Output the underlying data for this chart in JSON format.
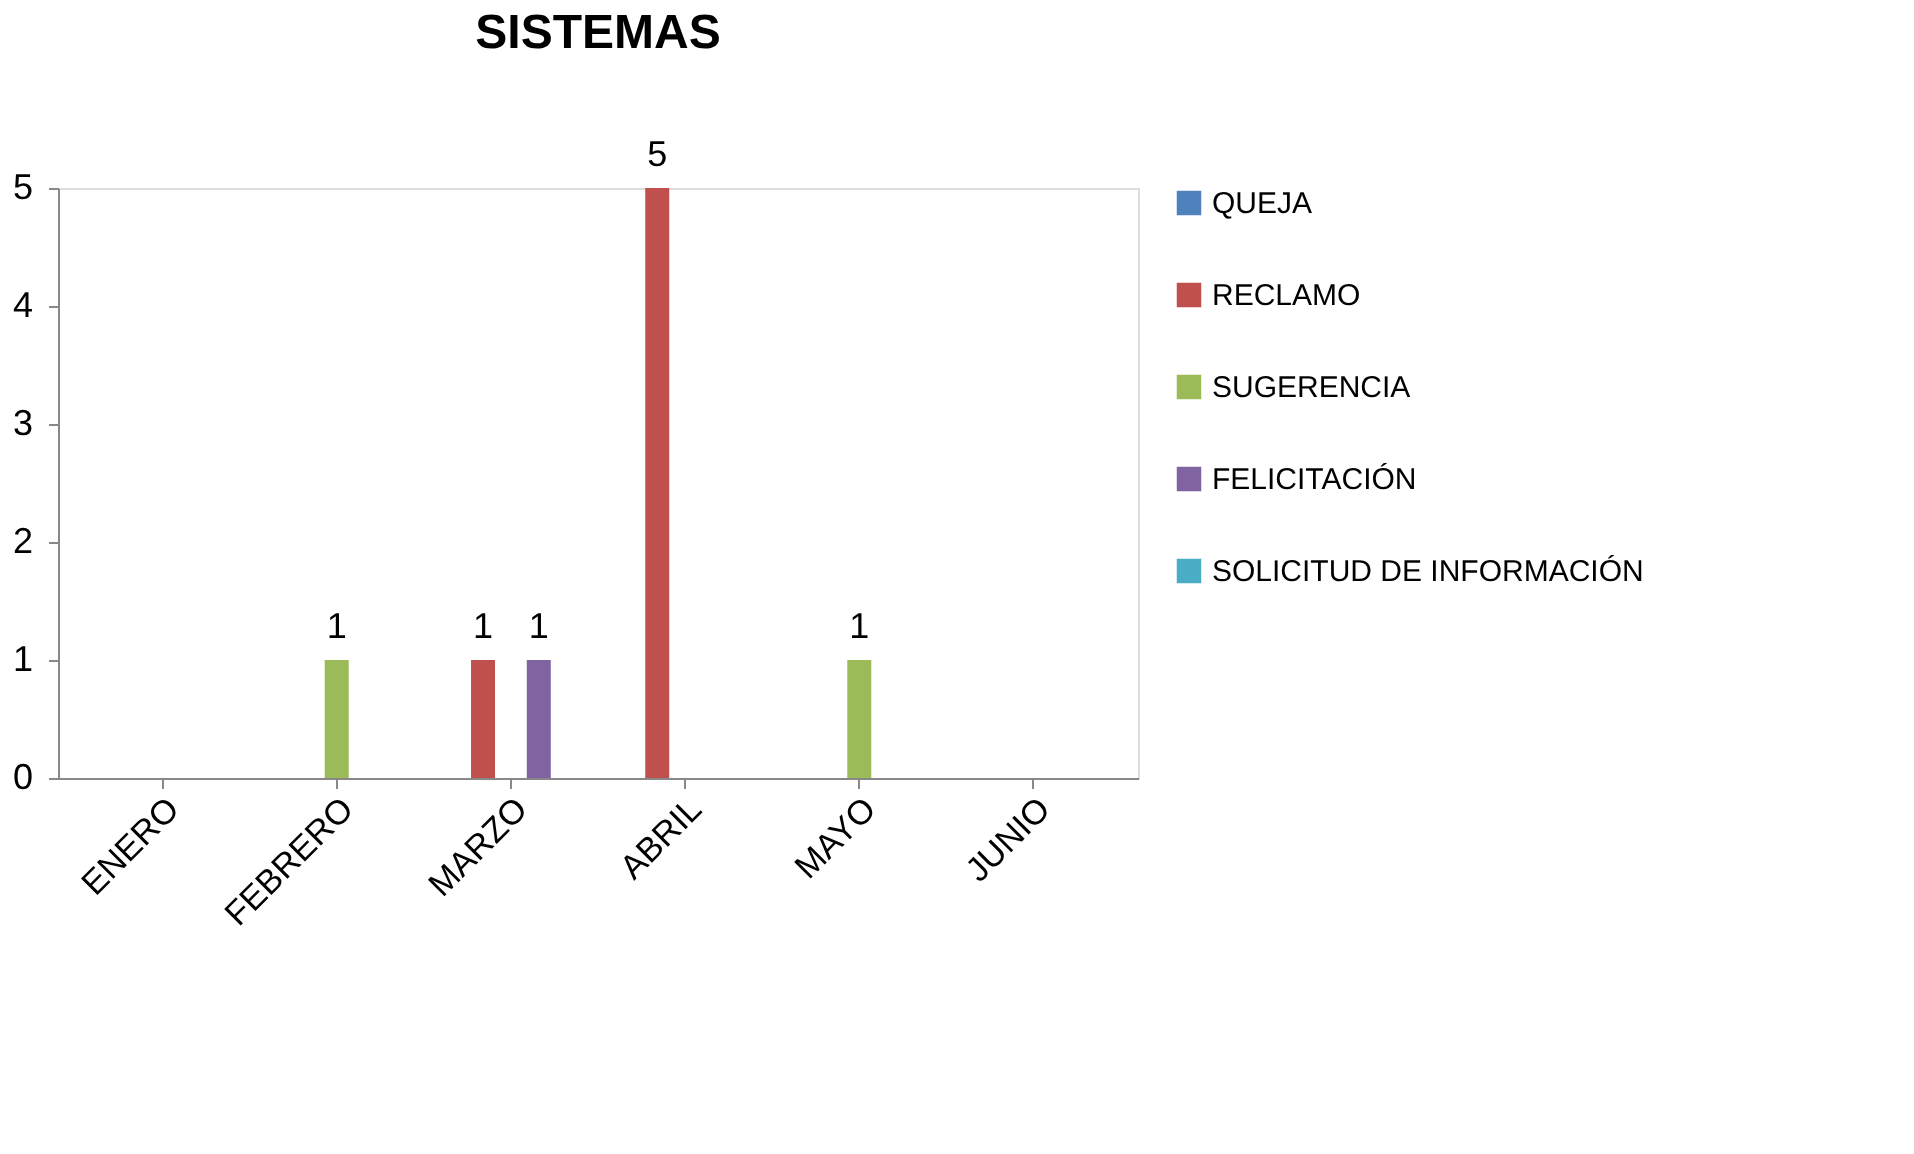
{
  "chart_data": {
    "type": "bar",
    "title": "SISTEMAS",
    "categories": [
      "ENERO",
      "FEBRERO",
      "MARZO",
      "ABRIL",
      "MAYO",
      "JUNIO"
    ],
    "series": [
      {
        "name": "QUEJA",
        "color": "#4f81bd",
        "values": [
          0,
          0,
          0,
          0,
          0,
          0
        ],
        "value_labels": [
          null,
          null,
          null,
          null,
          null,
          null
        ]
      },
      {
        "name": "RECLAMO",
        "color": "#c0504d",
        "values": [
          0,
          0,
          1,
          5,
          0,
          0
        ],
        "value_labels": [
          null,
          null,
          "1",
          "5",
          null,
          null
        ]
      },
      {
        "name": "SUGERENCIA",
        "color": "#9bbb59",
        "values": [
          0,
          1,
          0,
          0,
          1,
          0
        ],
        "value_labels": [
          null,
          "1",
          null,
          null,
          "1",
          null
        ]
      },
      {
        "name": "FELICITACIÓN",
        "color": "#8064a2",
        "values": [
          0,
          0,
          1,
          0,
          0,
          0
        ],
        "value_labels": [
          null,
          null,
          "1",
          null,
          null,
          null
        ]
      },
      {
        "name": "SOLICITUD DE INFORMACIÓN",
        "color": "#4bacc6",
        "values": [
          0,
          0,
          0,
          0,
          0,
          0
        ],
        "value_labels": [
          null,
          null,
          null,
          null,
          null,
          null
        ]
      }
    ],
    "ylim": [
      0,
      5
    ],
    "yticks": [
      0,
      1,
      2,
      3,
      4,
      5
    ],
    "grid": false,
    "legend": "right"
  }
}
